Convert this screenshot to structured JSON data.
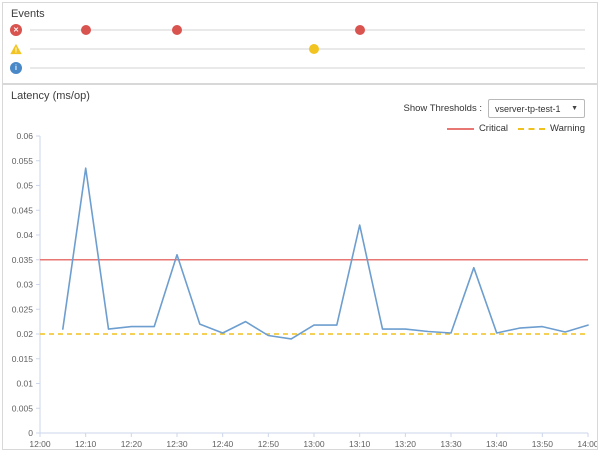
{
  "events_panel": {
    "title": "Events",
    "timeline_range": [
      "12:00",
      "14:00"
    ],
    "rows": [
      {
        "id": "error",
        "icon": "error-circle-icon",
        "icon_glyph": "✕",
        "color": "#d9534f",
        "events": [
          "12:10",
          "12:30",
          "13:10"
        ]
      },
      {
        "id": "warning",
        "icon": "warning-triangle-icon",
        "icon_glyph": "!",
        "color": "#f2c421",
        "events": [
          "13:00"
        ]
      },
      {
        "id": "info",
        "icon": "info-circle-icon",
        "icon_glyph": "i",
        "color": "#4a89c8",
        "events": []
      }
    ]
  },
  "latency_panel": {
    "title": "Latency (ms/op)",
    "threshold_selector": {
      "label": "Show Thresholds :",
      "value": "vserver-tp-test-1"
    },
    "legend": [
      {
        "label": "Critical",
        "color": "#e87672",
        "style": "solid"
      },
      {
        "label": "Warning",
        "color": "#f0c11e",
        "style": "dashed"
      }
    ]
  },
  "chart_data": {
    "type": "line",
    "title": "Latency (ms/op)",
    "xlabel": "",
    "ylabel": "",
    "x": [
      "12:05",
      "12:10",
      "12:15",
      "12:20",
      "12:25",
      "12:30",
      "12:35",
      "12:40",
      "12:45",
      "12:50",
      "12:55",
      "13:00",
      "13:05",
      "13:10",
      "13:15",
      "13:20",
      "13:25",
      "13:30",
      "13:35",
      "13:40",
      "13:45",
      "13:50",
      "13:55",
      "14:00"
    ],
    "values": [
      0.021,
      0.0535,
      0.021,
      0.0215,
      0.0215,
      0.036,
      0.022,
      0.0202,
      0.0225,
      0.0197,
      0.019,
      0.0218,
      0.0218,
      0.042,
      0.021,
      0.021,
      0.0205,
      0.0202,
      0.0334,
      0.0202,
      0.0212,
      0.0215,
      0.0204,
      0.0218
    ],
    "series_color": "#6d9ecf",
    "xticks": [
      "12:00",
      "12:10",
      "12:20",
      "12:30",
      "12:40",
      "12:50",
      "13:00",
      "13:10",
      "13:20",
      "13:30",
      "13:40",
      "13:50",
      "14:00"
    ],
    "yticks": [
      "0",
      "0.005",
      "0.01",
      "0.015",
      "0.02",
      "0.025",
      "0.03",
      "0.035",
      "0.04",
      "0.045",
      "0.05",
      "0.055",
      "0.06"
    ],
    "ylim": [
      0,
      0.06
    ],
    "xlim": [
      "12:00",
      "14:00"
    ],
    "grid": false,
    "legend_position": "top-right",
    "thresholds": [
      {
        "name": "Critical",
        "value": 0.035,
        "color": "#e87672",
        "dash": "solid"
      },
      {
        "name": "Warning",
        "value": 0.02,
        "color": "#f0c11e",
        "dash": "dashed"
      }
    ],
    "axis_color": "#ccd6eb",
    "tick_label_color": "#606060"
  }
}
